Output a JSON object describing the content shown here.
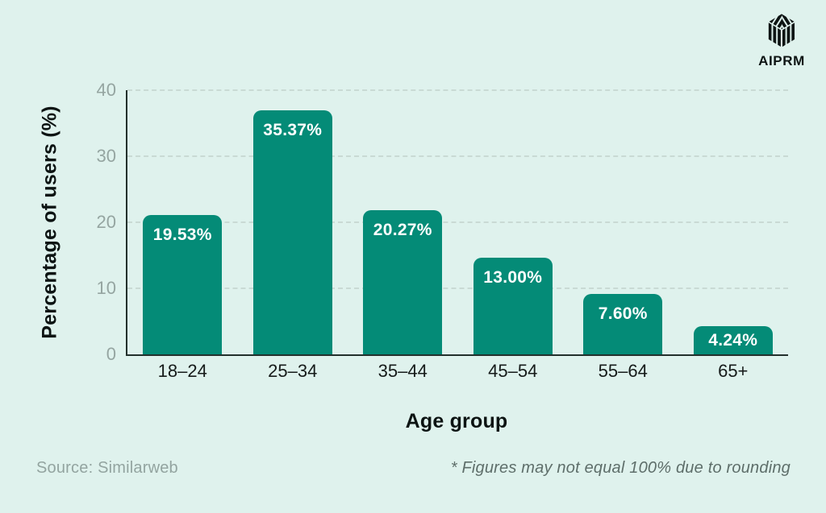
{
  "logo": {
    "text": "AIPRM",
    "icon": "aiprm-striped-cube-hexagon"
  },
  "footer": {
    "source": "Source: Similarweb",
    "note": "* Figures may not equal 100% due to rounding"
  },
  "chart_data": {
    "type": "bar",
    "title": "",
    "categories": [
      "18–24",
      "25–34",
      "35–44",
      "45–54",
      "55–64",
      "65+"
    ],
    "values": [
      19.53,
      35.37,
      20.27,
      13.0,
      7.6,
      4.24
    ],
    "value_labels": [
      "19.53%",
      "35.37%",
      "20.27%",
      "13.00%",
      "7.60%",
      "4.24%"
    ],
    "xlabel": "Age group",
    "ylabel": "Percentage of users (%)",
    "ylim": [
      0,
      40
    ],
    "yticks": [
      0,
      10,
      20,
      30,
      40
    ],
    "grid": "horizontal-dashed",
    "legend": "none",
    "colors": {
      "background": "#dff2ed",
      "bar": "#048b77",
      "axis": "#23302c",
      "gridline": "#c9dad4",
      "ytick_label": "#95a5a1",
      "xtick_label": "#161b1a",
      "value_label": "#ffffff",
      "source_text": "#93a4a0",
      "footnote_text": "#5e6e6a"
    }
  }
}
